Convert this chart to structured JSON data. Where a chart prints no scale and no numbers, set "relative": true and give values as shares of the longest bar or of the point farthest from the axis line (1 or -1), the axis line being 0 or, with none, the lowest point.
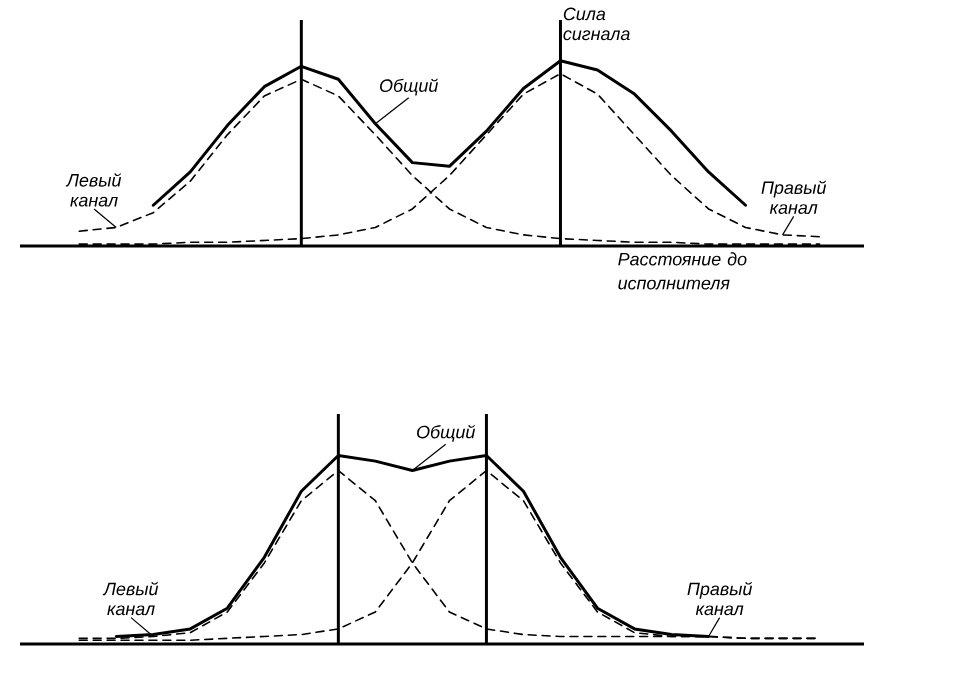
{
  "chart_data": [
    {
      "type": "line",
      "relative": true,
      "xlabel": "Расстояние до исполнителя",
      "ylabel": "Сила сигнала",
      "categories": [
        null,
        null,
        null,
        null,
        null,
        null,
        null,
        null,
        null,
        null,
        null,
        null,
        null,
        null,
        null,
        null,
        null,
        null,
        null,
        null,
        null
      ],
      "series": [
        {
          "name": "Левый канал",
          "color": "#000000",
          "line_style": "dashed",
          "values": [
            0.08,
            0.1,
            0.18,
            0.35,
            0.6,
            0.81,
            0.9,
            0.81,
            0.6,
            0.38,
            0.2,
            0.1,
            0.06,
            0.04,
            0.03,
            0.02,
            0.02,
            0.01,
            0.01,
            0.01,
            0.01
          ]
        },
        {
          "name": "Общий",
          "color": "#000000",
          "line_style": "solid",
          "values": [
            null,
            null,
            0.22,
            0.4,
            0.65,
            0.86,
            0.97,
            0.9,
            0.66,
            0.45,
            0.43,
            0.62,
            0.85,
            1.0,
            0.95,
            0.82,
            0.62,
            0.4,
            0.22,
            null,
            null
          ]
        },
        {
          "name": "Правый канал",
          "color": "#000000",
          "line_style": "dashed",
          "values": [
            0.01,
            0.01,
            0.01,
            0.02,
            0.02,
            0.03,
            0.04,
            0.06,
            0.1,
            0.2,
            0.38,
            0.6,
            0.82,
            0.93,
            0.82,
            0.6,
            0.38,
            0.2,
            0.1,
            0.06,
            0.05
          ]
        }
      ]
    },
    {
      "type": "line",
      "relative": true,
      "categories": [
        null,
        null,
        null,
        null,
        null,
        null,
        null,
        null,
        null,
        null,
        null,
        null,
        null,
        null,
        null,
        null,
        null,
        null,
        null,
        null,
        null
      ],
      "series": [
        {
          "name": "Левый канал",
          "color": "#000000",
          "line_style": "dashed",
          "values": [
            0.03,
            0.03,
            0.04,
            0.06,
            0.17,
            0.43,
            0.76,
            0.92,
            0.76,
            0.43,
            0.17,
            0.08,
            0.05,
            0.04,
            0.04,
            0.04,
            0.04,
            0.04,
            0.03,
            0.03,
            0.03
          ]
        },
        {
          "name": "Общий",
          "color": "#000000",
          "line_style": "solid",
          "values": [
            null,
            0.04,
            0.05,
            0.08,
            0.19,
            0.46,
            0.81,
            1.0,
            0.97,
            0.92,
            0.97,
            1.0,
            0.81,
            0.46,
            0.19,
            0.08,
            0.05,
            0.04,
            null,
            null,
            null
          ]
        },
        {
          "name": "Правый канал",
          "color": "#000000",
          "line_style": "dashed",
          "values": [
            0.02,
            0.02,
            0.02,
            0.02,
            0.03,
            0.04,
            0.05,
            0.08,
            0.17,
            0.43,
            0.76,
            0.92,
            0.76,
            0.43,
            0.17,
            0.06,
            0.04,
            0.04,
            0.03,
            0.03,
            0.03
          ]
        }
      ]
    }
  ]
}
